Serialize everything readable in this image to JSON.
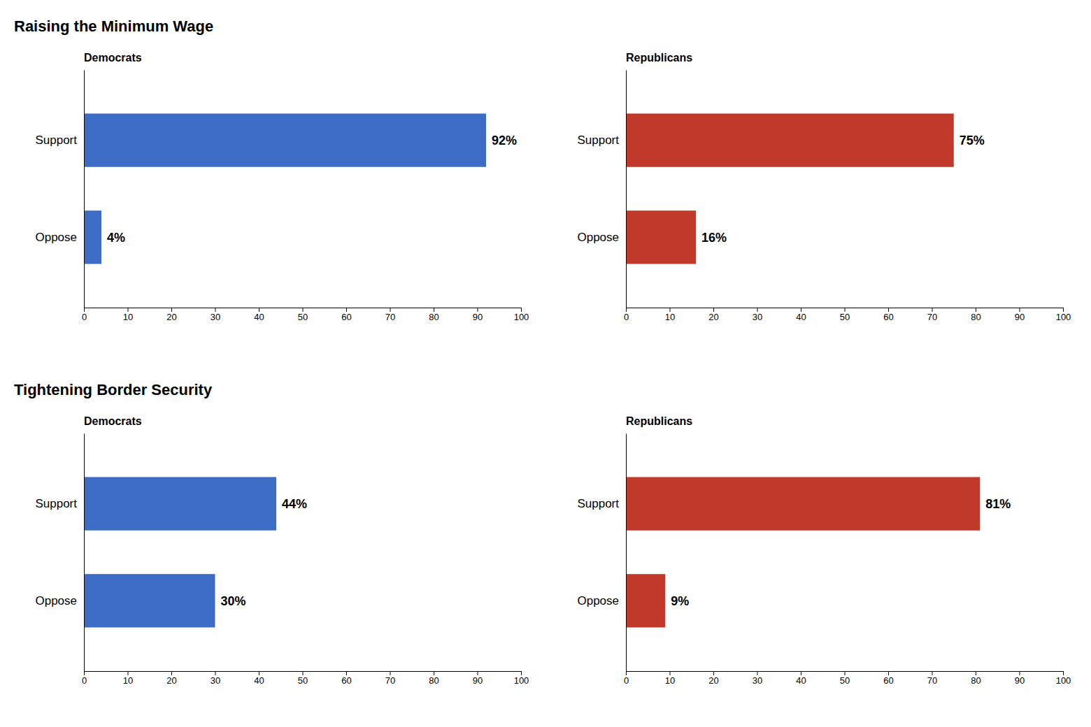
{
  "chart_data": [
    {
      "type": "bar",
      "orientation": "horizontal",
      "title": "Raising the Minimum Wage",
      "categories": [
        "Support",
        "Oppose"
      ],
      "series": [
        {
          "name": "Democrats",
          "color": "#3D6CC6",
          "values": [
            92,
            4
          ],
          "value_labels": [
            "92%",
            "4%"
          ]
        },
        {
          "name": "Republicans",
          "color": "#C0392B",
          "values": [
            75,
            16
          ],
          "value_labels": [
            "75%",
            "16%"
          ]
        }
      ],
      "xlim": [
        0,
        100
      ],
      "xticks": [
        0,
        10,
        20,
        30,
        40,
        50,
        60,
        70,
        80,
        90,
        100
      ],
      "grid": false
    },
    {
      "type": "bar",
      "orientation": "horizontal",
      "title": "Tightening Border Security",
      "categories": [
        "Support",
        "Oppose"
      ],
      "series": [
        {
          "name": "Democrats",
          "color": "#3D6CC6",
          "values": [
            44,
            30
          ],
          "value_labels": [
            "44%",
            "30%"
          ]
        },
        {
          "name": "Republicans",
          "color": "#C0392B",
          "values": [
            81,
            9
          ],
          "value_labels": [
            "81%",
            "9%"
          ]
        }
      ],
      "xlim": [
        0,
        100
      ],
      "xticks": [
        0,
        10,
        20,
        30,
        40,
        50,
        60,
        70,
        80,
        90,
        100
      ],
      "grid": false
    }
  ]
}
